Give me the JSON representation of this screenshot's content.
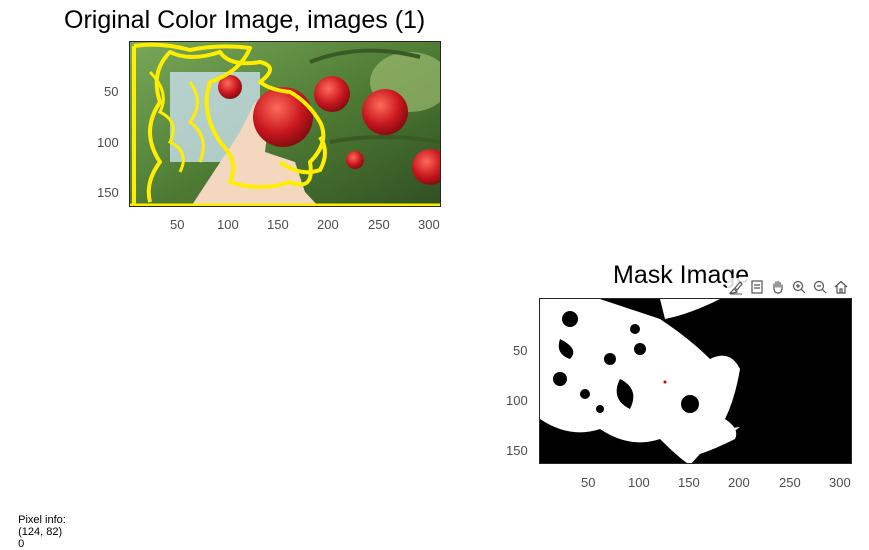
{
  "figure1": {
    "title": "Original Color Image, images (1)",
    "yticks": [
      "50",
      "100",
      "150"
    ],
    "xticks": [
      "50",
      "100",
      "150",
      "200",
      "250",
      "300"
    ]
  },
  "figure2": {
    "title": "Mask Image",
    "yticks": [
      "50",
      "100",
      "150"
    ],
    "xticks": [
      "50",
      "100",
      "150",
      "200",
      "250",
      "300"
    ]
  },
  "toolbar": {
    "icons": [
      "brush-icon",
      "data-tip-icon",
      "pan-hand-icon",
      "zoom-in-icon",
      "zoom-out-icon",
      "home-icon"
    ]
  },
  "status": {
    "label": "Pixel info:",
    "coords": "(124, 82)",
    "value": "0"
  },
  "colors": {
    "overlay": "#ffee00",
    "mask_fg": "#ffffff",
    "mask_bg": "#000000"
  }
}
